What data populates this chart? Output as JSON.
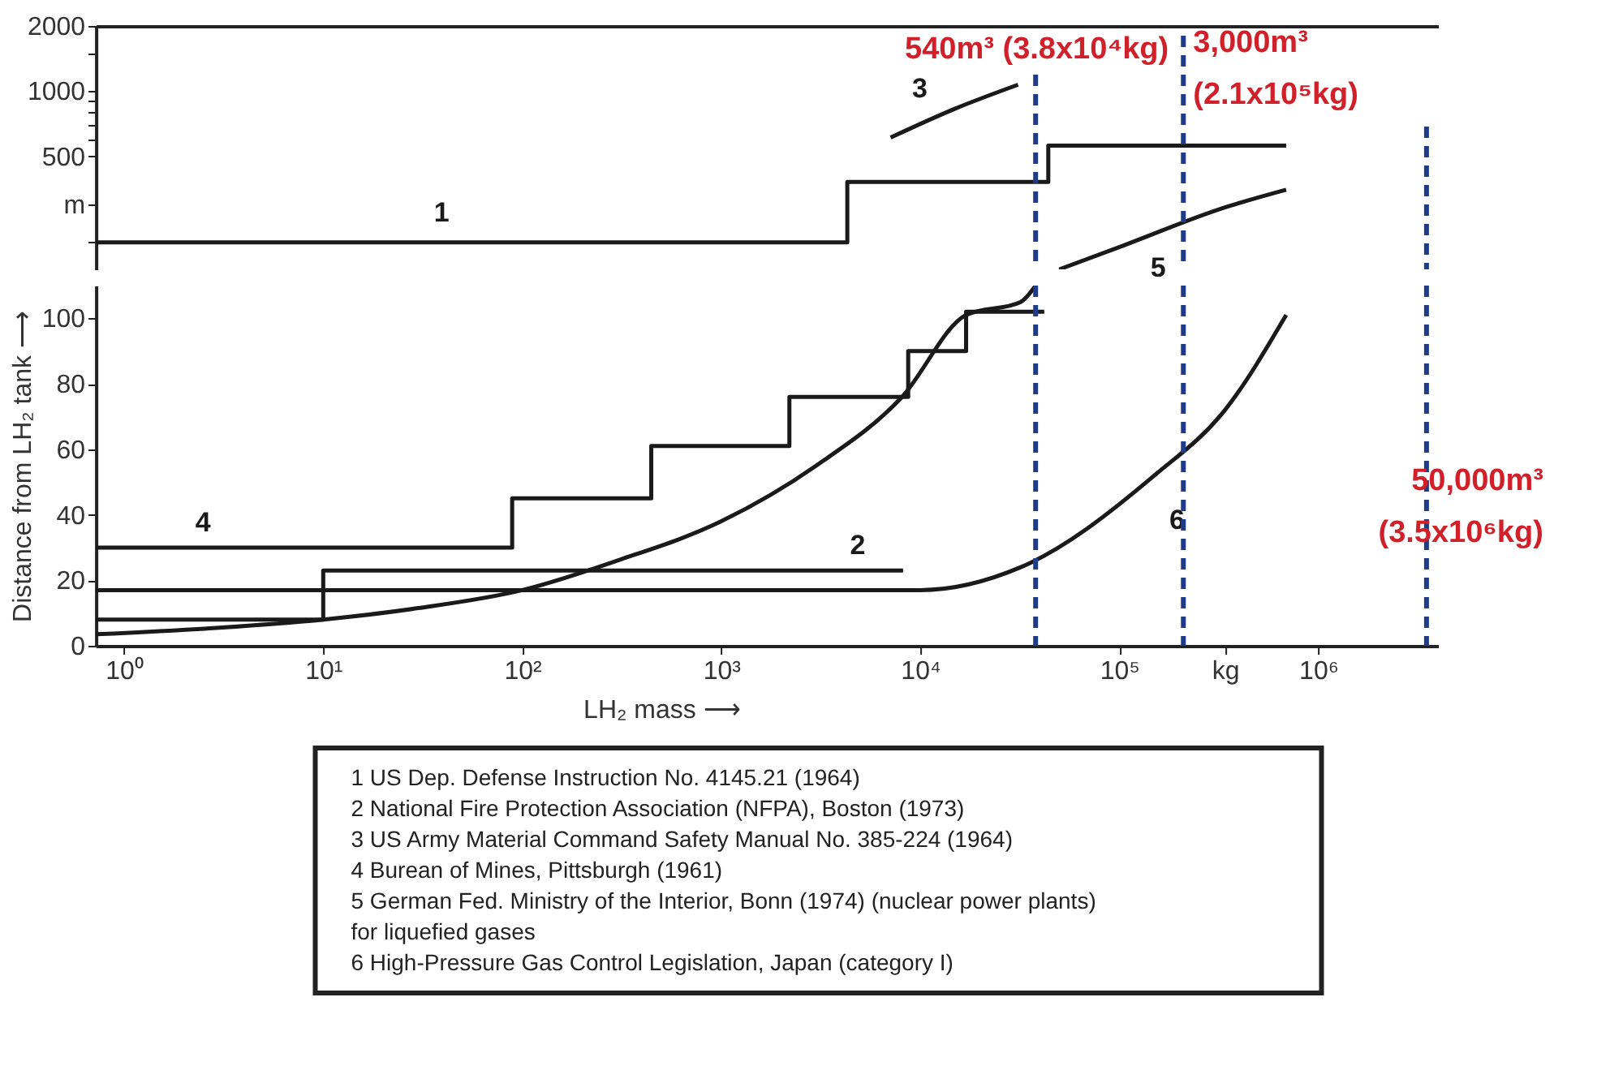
{
  "chart_data": [
    {
      "type": "step",
      "log": "xy",
      "xlim": [
        0.72,
        4000000
      ],
      "ylim": [
        150,
        2000
      ],
      "yticks": [
        {
          "value": 200,
          "label": null
        },
        {
          "value": 300,
          "label": "m"
        },
        500,
        {
          "value": 600,
          "label": null
        },
        {
          "value": 700,
          "label": null
        },
        {
          "value": 800,
          "label": null
        },
        {
          "value": 900,
          "label": null
        },
        1000,
        {
          "value": 1500,
          "label": null
        },
        2000
      ],
      "tick_labels": "y",
      "series": [
        {
          "type": "step",
          "name": "1",
          "color": "#1a1a1a",
          "x": [
            0.72,
            4300,
            44000,
            690000
          ],
          "values": [
            200,
            380,
            560,
            560
          ]
        },
        {
          "type": "line",
          "name": "3",
          "color": "#1a1a1a",
          "x": [
            7100,
            15000,
            31000
          ],
          "values": [
            610,
            830,
            1070
          ]
        },
        {
          "type": "line",
          "name": "5",
          "color": "#1a1a1a",
          "x": [
            50000,
            100000,
            340000,
            690000
          ],
          "values": [
            150,
            190,
            290,
            350
          ]
        }
      ],
      "ref_lines": [
        {
          "axis": "x",
          "value": 38000,
          "label": "540m³ (3.8x10⁴kg)",
          "color": "#1f3c88",
          "line_style": "dashed"
        },
        {
          "axis": "x",
          "value": 210000,
          "label": "3,000m³\n(2.1x10⁵kg)",
          "color": "#1f3c88",
          "line_style": "dashed"
        },
        {
          "axis": "x",
          "value": 3500000,
          "color": "#1f3c88",
          "line_style": "dashed"
        }
      ],
      "line_style": "solid"
    },
    {
      "type": "step",
      "log": "x",
      "xlim": [
        0.72,
        4000000
      ],
      "ylim": [
        0,
        110
      ],
      "yticks": [
        0,
        20,
        40,
        60,
        80,
        100
      ],
      "xticks": [
        {
          "value": 1,
          "label": "10⁰"
        },
        {
          "value": 10,
          "label": "10¹"
        },
        {
          "value": 100,
          "label": "10²"
        },
        {
          "value": 1000,
          "label": "10³"
        },
        {
          "value": 10000,
          "label": "10⁴"
        },
        {
          "value": 100000,
          "label": "10⁵"
        },
        {
          "value": 340000,
          "label": "kg"
        },
        {
          "value": 1000000,
          "label": "10⁶"
        }
      ],
      "xlabel": "LH₂ mass ⟶",
      "ylabel": "Distance from LH₂ tank ⟶",
      "series": [
        {
          "type": "step",
          "name": "2",
          "color": "#1a1a1a",
          "x": [
            0.72,
            10,
            8200
          ],
          "values": [
            8,
            23,
            23
          ]
        },
        {
          "type": "step",
          "name": "4",
          "color": "#1a1a1a",
          "x": [
            0.72,
            89,
            445,
            2200,
            8700,
            17000,
            42000
          ],
          "values": [
            30,
            45,
            61,
            76,
            90,
            102,
            102
          ]
        },
        {
          "type": "line",
          "color": "#1a1a1a",
          "x": [
            0.72,
            3,
            10,
            30,
            100,
            300,
            1000,
            3000,
            8100,
            17000,
            32000,
            38000
          ],
          "values": [
            3.5,
            5.5,
            8,
            11.5,
            17,
            26,
            38,
            55,
            76,
            101,
            105,
            110
          ]
        },
        {
          "type": "line",
          "name": "6",
          "color": "#1a1a1a",
          "x": [
            0.72,
            10000,
            32000,
            150000,
            340000,
            690000
          ],
          "values": [
            17,
            17,
            24,
            52,
            72,
            101
          ]
        }
      ],
      "ref_lines": [
        {
          "axis": "x",
          "value": 38000,
          "color": "#1f3c88",
          "line_style": "dashed"
        },
        {
          "axis": "x",
          "value": 210000,
          "color": "#1f3c88",
          "line_style": "dashed"
        },
        {
          "axis": "x",
          "value": 3500000,
          "label": "50,000m³\n(3.5x10⁶kg)",
          "color": "#1f3c88",
          "line_style": "dashed"
        }
      ],
      "line_style": "solid"
    },
    {
      "type": "other",
      "annotations": [
        "1 US Dep. Defense Instruction No. 4145.21 (1964)",
        "2 National Fire Protection Association (NFPA), Boston (1973)",
        "3 US Army Material Command Safety Manual No. 385-224 (1964)",
        "4 Burean of Mines, Pittsburgh (1961)",
        "5 German Fed. Ministry of the Interior, Bonn (1974) (nuclear power plants)\nfor liquefied gases",
        "6 High-Pressure Gas Control Legislation, Japan (category I)"
      ]
    }
  ]
}
